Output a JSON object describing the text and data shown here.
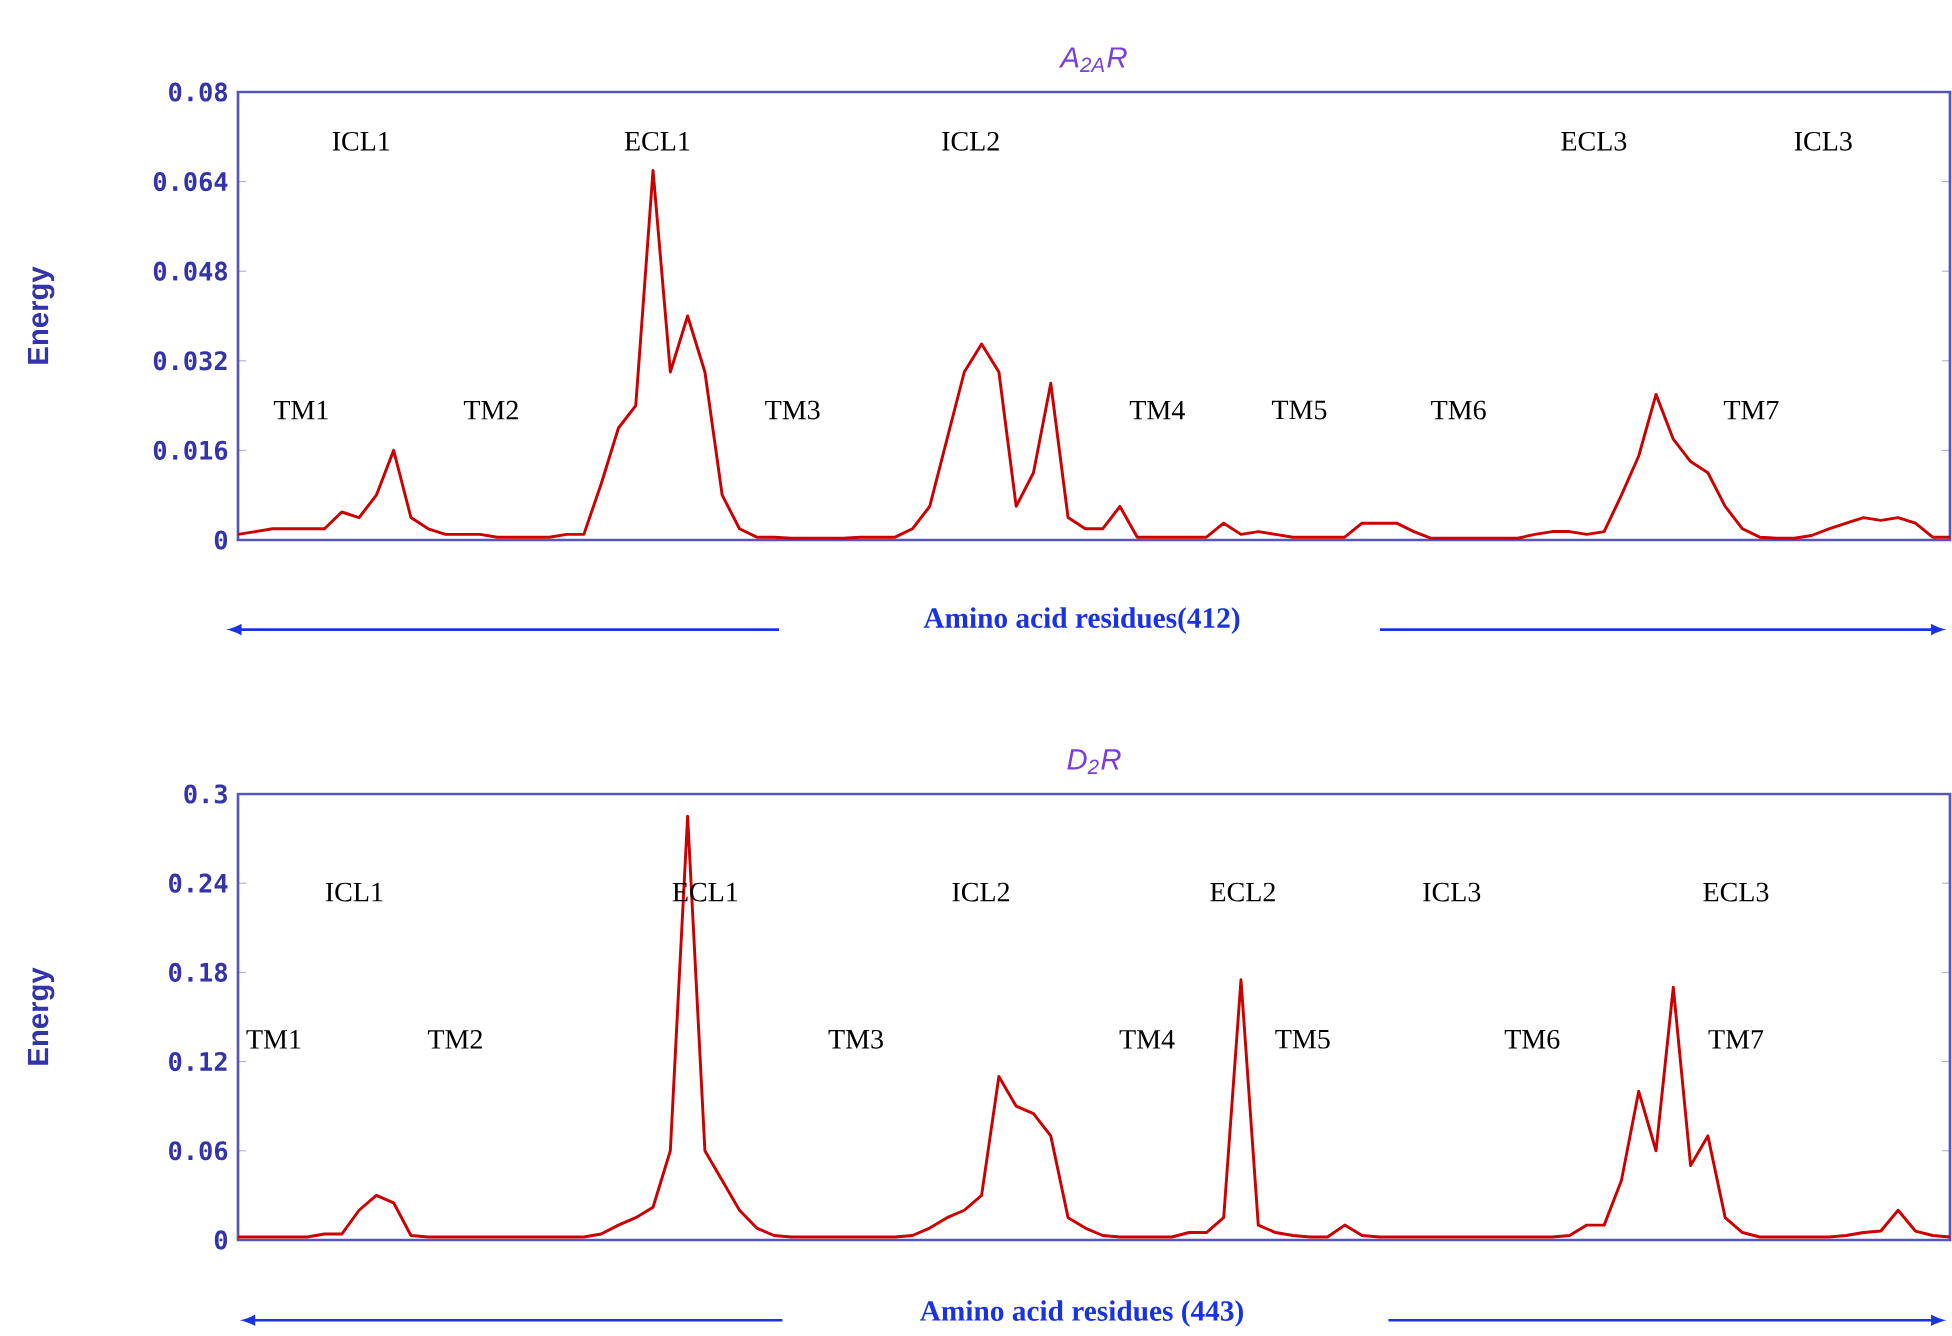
{
  "chart_data": [
    {
      "type": "line",
      "title": "A$_{2A}$R",
      "ylabel": "Energy",
      "xlabel": "Amino acid residues(412)",
      "ylim": [
        0,
        0.08
      ],
      "yticks": [
        0,
        0.016,
        0.032,
        0.048,
        0.064,
        0.08
      ],
      "tick_labels": "y",
      "categories": [
        null,
        null,
        null,
        null,
        null,
        null,
        null,
        null,
        null,
        null,
        null,
        null,
        null,
        null,
        null,
        null,
        null,
        null,
        null,
        null,
        null,
        null,
        null,
        null,
        null,
        null,
        null,
        null,
        null,
        null,
        null,
        null,
        null,
        null,
        null,
        null,
        null,
        null,
        null,
        null,
        null,
        null,
        null,
        null,
        null,
        null,
        null,
        null,
        null,
        null,
        null,
        null,
        null,
        null,
        null,
        null,
        null,
        null,
        null,
        null,
        null,
        null,
        null,
        null,
        null,
        null,
        null,
        null,
        null,
        null,
        null,
        null,
        null,
        null,
        null,
        null,
        null,
        null,
        null,
        null,
        null,
        null,
        null,
        null,
        null,
        null,
        null,
        null,
        null,
        null,
        null,
        null,
        null,
        null,
        null,
        null,
        null,
        null,
        null,
        null
      ],
      "series": [
        {
          "color": "#cc0000",
          "values": [
            0.001,
            0.0015,
            0.002,
            0.002,
            0.002,
            0.002,
            0.005,
            0.004,
            0.008,
            0.016,
            0.004,
            0.002,
            0.001,
            0.001,
            0.001,
            0.0005,
            0.0005,
            0.0005,
            0.0005,
            0.001,
            0.001,
            0.01,
            0.02,
            0.024,
            0.066,
            0.03,
            0.04,
            0.03,
            0.008,
            0.002,
            0.0005,
            0.0005,
            0.0003,
            0.0003,
            0.0003,
            0.0003,
            0.0005,
            0.0005,
            0.0005,
            0.002,
            0.006,
            0.018,
            0.03,
            0.035,
            0.03,
            0.006,
            0.012,
            0.028,
            0.004,
            0.002,
            0.002,
            0.006,
            0.0005,
            0.0005,
            0.0005,
            0.0005,
            0.0005,
            0.003,
            0.001,
            0.0015,
            0.001,
            0.0005,
            0.0005,
            0.0005,
            0.0005,
            0.003,
            0.003,
            0.003,
            0.0015,
            0.0003,
            0.0003,
            0.0003,
            0.0003,
            0.0003,
            0.0003,
            0.001,
            0.0015,
            0.0015,
            0.001,
            0.0015,
            0.008,
            0.015,
            0.026,
            0.018,
            0.014,
            0.012,
            0.006,
            0.002,
            0.0005,
            0.0003,
            0.0003,
            0.0008,
            0.002,
            0.003,
            0.004,
            0.0035,
            0.004,
            0.003,
            0.0005,
            0.0005
          ]
        }
      ],
      "annotations": [
        "ICL1",
        "ECL1",
        "ICL2",
        "ECL3",
        "ICL3",
        "TM1",
        "TM2",
        "TM3",
        "TM4",
        "TM5",
        "TM6",
        "TM7"
      ]
    },
    {
      "type": "line",
      "title": "D$_{2}$R",
      "ylabel": "Energy",
      "xlabel": "Amino acid residues (443)",
      "ylim": [
        0,
        0.3
      ],
      "yticks": [
        0,
        0.06,
        0.12,
        0.18,
        0.24,
        0.3
      ],
      "tick_labels": "y",
      "categories": [
        null,
        null,
        null,
        null,
        null,
        null,
        null,
        null,
        null,
        null,
        null,
        null,
        null,
        null,
        null,
        null,
        null,
        null,
        null,
        null,
        null,
        null,
        null,
        null,
        null,
        null,
        null,
        null,
        null,
        null,
        null,
        null,
        null,
        null,
        null,
        null,
        null,
        null,
        null,
        null,
        null,
        null,
        null,
        null,
        null,
        null,
        null,
        null,
        null,
        null,
        null,
        null,
        null,
        null,
        null,
        null,
        null,
        null,
        null,
        null,
        null,
        null,
        null,
        null,
        null,
        null,
        null,
        null,
        null,
        null,
        null,
        null,
        null,
        null,
        null,
        null,
        null,
        null,
        null,
        null,
        null,
        null,
        null,
        null,
        null,
        null,
        null,
        null,
        null,
        null,
        null,
        null,
        null,
        null,
        null,
        null,
        null,
        null,
        null,
        null
      ],
      "series": [
        {
          "color": "#cc0000",
          "values": [
            0.002,
            0.002,
            0.002,
            0.002,
            0.002,
            0.004,
            0.004,
            0.02,
            0.03,
            0.025,
            0.003,
            0.002,
            0.002,
            0.002,
            0.002,
            0.002,
            0.002,
            0.002,
            0.002,
            0.002,
            0.002,
            0.004,
            0.01,
            0.015,
            0.022,
            0.06,
            0.285,
            0.06,
            0.04,
            0.02,
            0.008,
            0.003,
            0.002,
            0.002,
            0.002,
            0.002,
            0.002,
            0.002,
            0.002,
            0.003,
            0.008,
            0.015,
            0.02,
            0.03,
            0.11,
            0.09,
            0.085,
            0.07,
            0.015,
            0.008,
            0.003,
            0.002,
            0.002,
            0.002,
            0.002,
            0.005,
            0.005,
            0.015,
            0.175,
            0.01,
            0.005,
            0.003,
            0.002,
            0.002,
            0.01,
            0.003,
            0.002,
            0.002,
            0.002,
            0.002,
            0.002,
            0.002,
            0.002,
            0.002,
            0.002,
            0.002,
            0.002,
            0.003,
            0.01,
            0.01,
            0.04,
            0.1,
            0.06,
            0.17,
            0.05,
            0.07,
            0.015,
            0.005,
            0.002,
            0.002,
            0.002,
            0.002,
            0.002,
            0.003,
            0.005,
            0.006,
            0.02,
            0.006,
            0.003,
            0.002
          ]
        }
      ],
      "annotations": [
        "ICL1",
        "ECL1",
        "ICL2",
        "ECL2",
        "ICL3",
        "ECL3",
        "TM1",
        "TM2",
        "TM3",
        "TM4",
        "TM5",
        "TM6",
        "TM7"
      ]
    }
  ]
}
